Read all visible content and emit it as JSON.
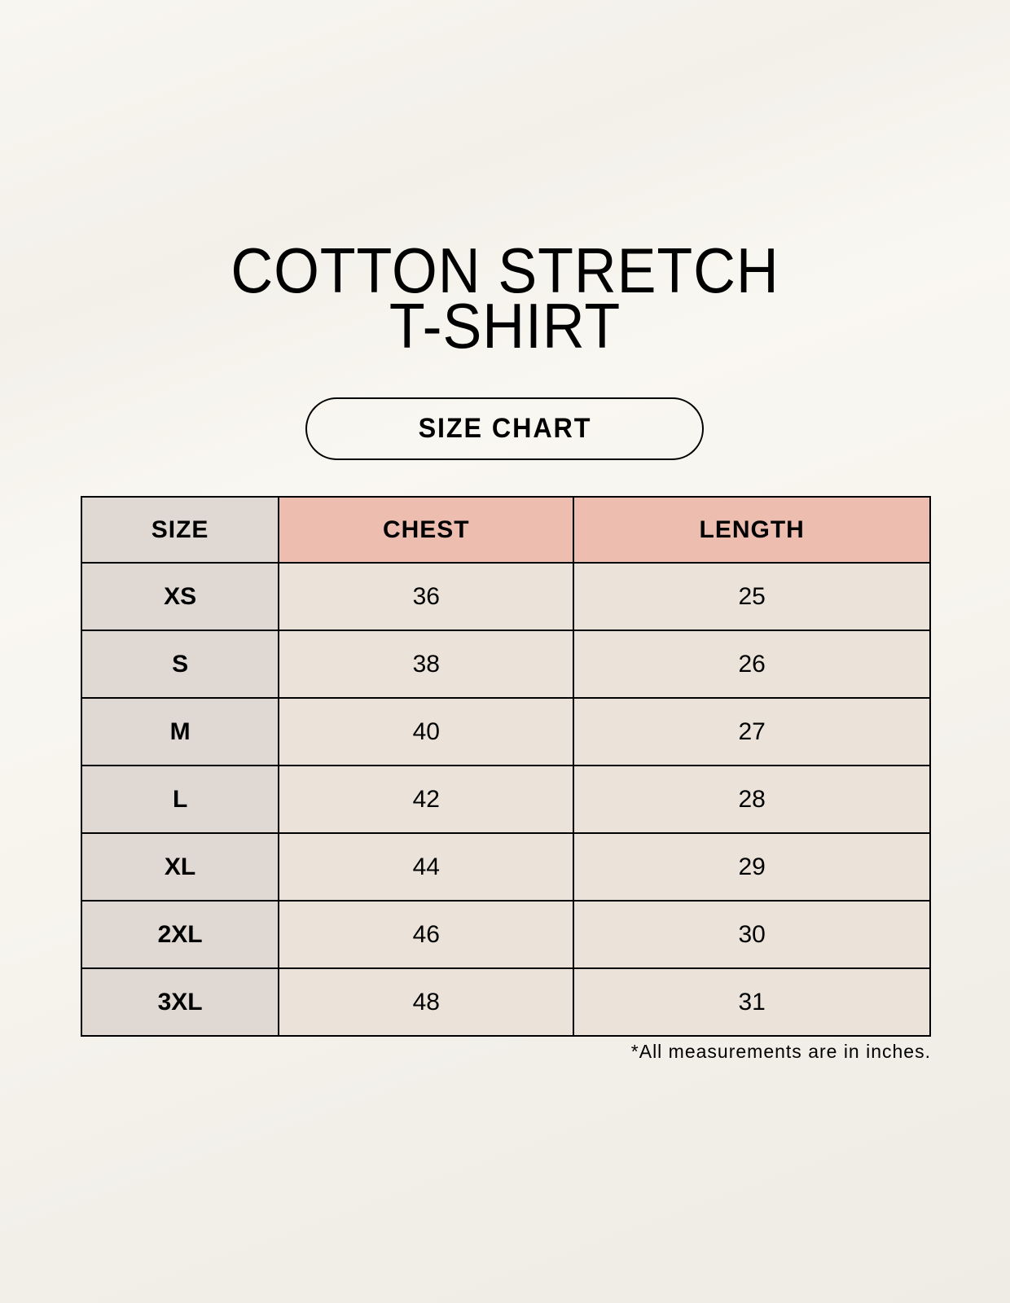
{
  "title": {
    "line1": "COTTON STRETCH",
    "line2": "T-SHIRT"
  },
  "badge": "SIZE CHART",
  "table": {
    "headers": [
      "SIZE",
      "CHEST",
      "LENGTH"
    ],
    "rows": [
      [
        "XS",
        "36",
        "25"
      ],
      [
        "S",
        "38",
        "26"
      ],
      [
        "M",
        "40",
        "27"
      ],
      [
        "L",
        "42",
        "28"
      ],
      [
        "XL",
        "44",
        "29"
      ],
      [
        "2XL",
        "46",
        "30"
      ],
      [
        "3XL",
        "48",
        "31"
      ]
    ]
  },
  "footnote": "*All measurements are in inches.",
  "colors": {
    "size_column": "#e0d8d2",
    "header_accent": "#edbdb0",
    "cell": "#ebe3d9"
  }
}
